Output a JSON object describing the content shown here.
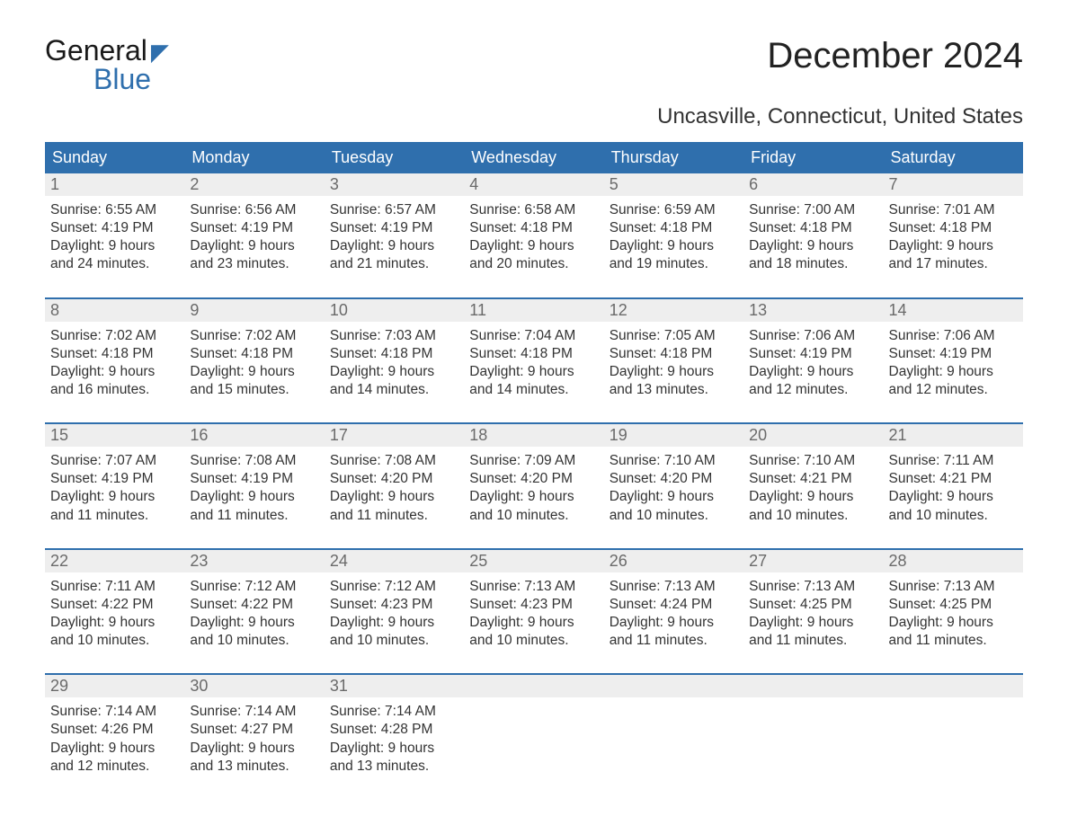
{
  "logo": {
    "word1": "General",
    "word2": "Blue"
  },
  "title": "December 2024",
  "location": "Uncasville, Connecticut, United States",
  "colors": {
    "brand": "#2f6fad",
    "row_bg": "#eeeeee",
    "text": "#333333"
  },
  "day_names": [
    "Sunday",
    "Monday",
    "Tuesday",
    "Wednesday",
    "Thursday",
    "Friday",
    "Saturday"
  ],
  "weeks": [
    [
      {
        "n": "1",
        "sr": "Sunrise: 6:55 AM",
        "ss": "Sunset: 4:19 PM",
        "dl1": "Daylight: 9 hours",
        "dl2": "and 24 minutes."
      },
      {
        "n": "2",
        "sr": "Sunrise: 6:56 AM",
        "ss": "Sunset: 4:19 PM",
        "dl1": "Daylight: 9 hours",
        "dl2": "and 23 minutes."
      },
      {
        "n": "3",
        "sr": "Sunrise: 6:57 AM",
        "ss": "Sunset: 4:19 PM",
        "dl1": "Daylight: 9 hours",
        "dl2": "and 21 minutes."
      },
      {
        "n": "4",
        "sr": "Sunrise: 6:58 AM",
        "ss": "Sunset: 4:18 PM",
        "dl1": "Daylight: 9 hours",
        "dl2": "and 20 minutes."
      },
      {
        "n": "5",
        "sr": "Sunrise: 6:59 AM",
        "ss": "Sunset: 4:18 PM",
        "dl1": "Daylight: 9 hours",
        "dl2": "and 19 minutes."
      },
      {
        "n": "6",
        "sr": "Sunrise: 7:00 AM",
        "ss": "Sunset: 4:18 PM",
        "dl1": "Daylight: 9 hours",
        "dl2": "and 18 minutes."
      },
      {
        "n": "7",
        "sr": "Sunrise: 7:01 AM",
        "ss": "Sunset: 4:18 PM",
        "dl1": "Daylight: 9 hours",
        "dl2": "and 17 minutes."
      }
    ],
    [
      {
        "n": "8",
        "sr": "Sunrise: 7:02 AM",
        "ss": "Sunset: 4:18 PM",
        "dl1": "Daylight: 9 hours",
        "dl2": "and 16 minutes."
      },
      {
        "n": "9",
        "sr": "Sunrise: 7:02 AM",
        "ss": "Sunset: 4:18 PM",
        "dl1": "Daylight: 9 hours",
        "dl2": "and 15 minutes."
      },
      {
        "n": "10",
        "sr": "Sunrise: 7:03 AM",
        "ss": "Sunset: 4:18 PM",
        "dl1": "Daylight: 9 hours",
        "dl2": "and 14 minutes."
      },
      {
        "n": "11",
        "sr": "Sunrise: 7:04 AM",
        "ss": "Sunset: 4:18 PM",
        "dl1": "Daylight: 9 hours",
        "dl2": "and 14 minutes."
      },
      {
        "n": "12",
        "sr": "Sunrise: 7:05 AM",
        "ss": "Sunset: 4:18 PM",
        "dl1": "Daylight: 9 hours",
        "dl2": "and 13 minutes."
      },
      {
        "n": "13",
        "sr": "Sunrise: 7:06 AM",
        "ss": "Sunset: 4:19 PM",
        "dl1": "Daylight: 9 hours",
        "dl2": "and 12 minutes."
      },
      {
        "n": "14",
        "sr": "Sunrise: 7:06 AM",
        "ss": "Sunset: 4:19 PM",
        "dl1": "Daylight: 9 hours",
        "dl2": "and 12 minutes."
      }
    ],
    [
      {
        "n": "15",
        "sr": "Sunrise: 7:07 AM",
        "ss": "Sunset: 4:19 PM",
        "dl1": "Daylight: 9 hours",
        "dl2": "and 11 minutes."
      },
      {
        "n": "16",
        "sr": "Sunrise: 7:08 AM",
        "ss": "Sunset: 4:19 PM",
        "dl1": "Daylight: 9 hours",
        "dl2": "and 11 minutes."
      },
      {
        "n": "17",
        "sr": "Sunrise: 7:08 AM",
        "ss": "Sunset: 4:20 PM",
        "dl1": "Daylight: 9 hours",
        "dl2": "and 11 minutes."
      },
      {
        "n": "18",
        "sr": "Sunrise: 7:09 AM",
        "ss": "Sunset: 4:20 PM",
        "dl1": "Daylight: 9 hours",
        "dl2": "and 10 minutes."
      },
      {
        "n": "19",
        "sr": "Sunrise: 7:10 AM",
        "ss": "Sunset: 4:20 PM",
        "dl1": "Daylight: 9 hours",
        "dl2": "and 10 minutes."
      },
      {
        "n": "20",
        "sr": "Sunrise: 7:10 AM",
        "ss": "Sunset: 4:21 PM",
        "dl1": "Daylight: 9 hours",
        "dl2": "and 10 minutes."
      },
      {
        "n": "21",
        "sr": "Sunrise: 7:11 AM",
        "ss": "Sunset: 4:21 PM",
        "dl1": "Daylight: 9 hours",
        "dl2": "and 10 minutes."
      }
    ],
    [
      {
        "n": "22",
        "sr": "Sunrise: 7:11 AM",
        "ss": "Sunset: 4:22 PM",
        "dl1": "Daylight: 9 hours",
        "dl2": "and 10 minutes."
      },
      {
        "n": "23",
        "sr": "Sunrise: 7:12 AM",
        "ss": "Sunset: 4:22 PM",
        "dl1": "Daylight: 9 hours",
        "dl2": "and 10 minutes."
      },
      {
        "n": "24",
        "sr": "Sunrise: 7:12 AM",
        "ss": "Sunset: 4:23 PM",
        "dl1": "Daylight: 9 hours",
        "dl2": "and 10 minutes."
      },
      {
        "n": "25",
        "sr": "Sunrise: 7:13 AM",
        "ss": "Sunset: 4:23 PM",
        "dl1": "Daylight: 9 hours",
        "dl2": "and 10 minutes."
      },
      {
        "n": "26",
        "sr": "Sunrise: 7:13 AM",
        "ss": "Sunset: 4:24 PM",
        "dl1": "Daylight: 9 hours",
        "dl2": "and 11 minutes."
      },
      {
        "n": "27",
        "sr": "Sunrise: 7:13 AM",
        "ss": "Sunset: 4:25 PM",
        "dl1": "Daylight: 9 hours",
        "dl2": "and 11 minutes."
      },
      {
        "n": "28",
        "sr": "Sunrise: 7:13 AM",
        "ss": "Sunset: 4:25 PM",
        "dl1": "Daylight: 9 hours",
        "dl2": "and 11 minutes."
      }
    ],
    [
      {
        "n": "29",
        "sr": "Sunrise: 7:14 AM",
        "ss": "Sunset: 4:26 PM",
        "dl1": "Daylight: 9 hours",
        "dl2": "and 12 minutes."
      },
      {
        "n": "30",
        "sr": "Sunrise: 7:14 AM",
        "ss": "Sunset: 4:27 PM",
        "dl1": "Daylight: 9 hours",
        "dl2": "and 13 minutes."
      },
      {
        "n": "31",
        "sr": "Sunrise: 7:14 AM",
        "ss": "Sunset: 4:28 PM",
        "dl1": "Daylight: 9 hours",
        "dl2": "and 13 minutes."
      },
      {
        "empty": true
      },
      {
        "empty": true
      },
      {
        "empty": true
      },
      {
        "empty": true
      }
    ]
  ]
}
